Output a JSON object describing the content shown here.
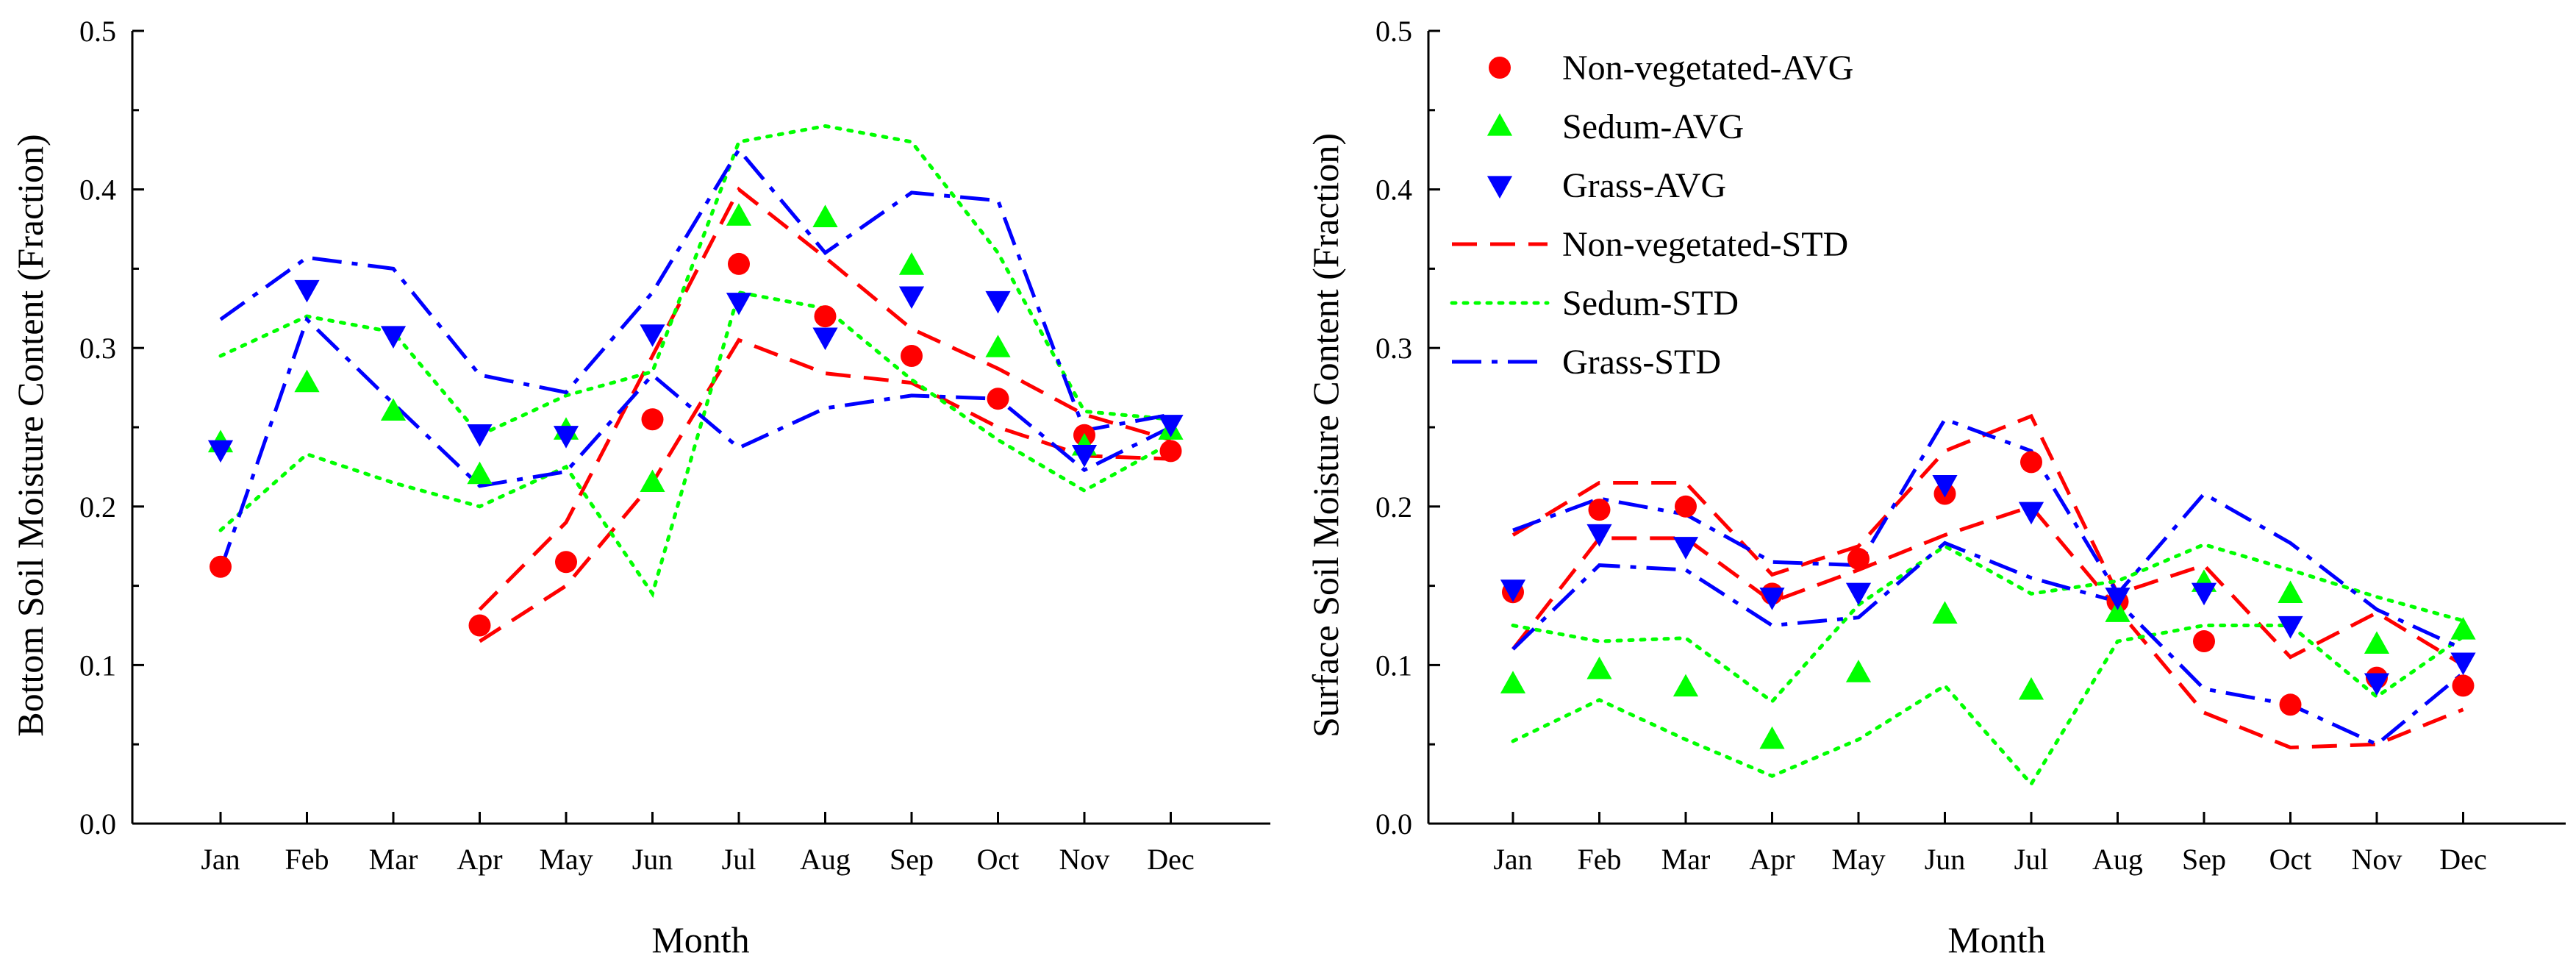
{
  "colors": {
    "nonveg": "#ff0000",
    "sedum": "#00ff00",
    "grass": "#0000ff",
    "axis": "#000000",
    "background": "#ffffff"
  },
  "legend": {
    "items": [
      {
        "label": "Non-vegetated-AVG",
        "series": "nonveg",
        "kind": "marker",
        "marker": "circle"
      },
      {
        "label": "Sedum-AVG",
        "series": "sedum",
        "kind": "marker",
        "marker": "triangle-up"
      },
      {
        "label": "Grass-AVG",
        "series": "grass",
        "kind": "marker",
        "marker": "triangle-down"
      },
      {
        "label": "Non-vegetated-STD",
        "series": "nonveg",
        "kind": "line",
        "style": "dash"
      },
      {
        "label": "Sedum-STD",
        "series": "sedum",
        "kind": "line",
        "style": "dot"
      },
      {
        "label": "Grass-STD",
        "series": "grass",
        "kind": "line",
        "style": "dashdot"
      }
    ]
  },
  "chart_data": [
    {
      "type": "scatter",
      "title": "",
      "xlabel": "Month",
      "ylabel": "Bottom Soil Moisture Content (Fraction)",
      "categories": [
        "Jan",
        "Feb",
        "Mar",
        "Apr",
        "May",
        "Jun",
        "Jul",
        "Aug",
        "Sep",
        "Oct",
        "Nov",
        "Dec"
      ],
      "ylim": [
        0.0,
        0.5
      ],
      "yticks": [
        "0.0",
        "0.1",
        "0.2",
        "0.3",
        "0.4",
        "0.5"
      ],
      "grid": false,
      "series": [
        {
          "name": "Non-vegetated-AVG",
          "key": "nonveg",
          "marker": "circle",
          "values": [
            0.162,
            null,
            null,
            0.125,
            0.165,
            0.255,
            0.353,
            0.32,
            0.295,
            0.268,
            0.245,
            0.235
          ]
        },
        {
          "name": "Sedum-AVG",
          "key": "sedum",
          "marker": "triangle-up",
          "values": [
            0.24,
            0.278,
            0.26,
            0.22,
            0.248,
            0.215,
            0.383,
            0.382,
            0.352,
            0.3,
            0.238,
            0.248
          ]
        },
        {
          "name": "Grass-AVG",
          "key": "grass",
          "marker": "triangle-down",
          "values": [
            0.236,
            0.337,
            0.308,
            0.246,
            0.245,
            0.309,
            0.329,
            0.307,
            0.333,
            0.33,
            0.233,
            0.252
          ]
        }
      ],
      "std_bands": [
        {
          "name": "Non-vegetated-STD",
          "key": "nonveg",
          "style": "dash",
          "upper": [
            null,
            null,
            null,
            0.135,
            0.19,
            0.295,
            0.4,
            0.357,
            0.312,
            0.287,
            0.258,
            0.242
          ],
          "lower": [
            null,
            null,
            null,
            0.115,
            0.15,
            0.215,
            0.305,
            0.284,
            0.278,
            0.25,
            0.232,
            0.23
          ]
        },
        {
          "name": "Sedum-STD",
          "key": "sedum",
          "style": "dot",
          "upper": [
            0.295,
            0.32,
            0.31,
            0.245,
            0.27,
            0.285,
            0.43,
            0.44,
            0.43,
            0.36,
            0.26,
            0.255
          ],
          "lower": [
            0.185,
            0.233,
            0.215,
            0.2,
            0.225,
            0.145,
            0.335,
            0.325,
            0.28,
            0.242,
            0.21,
            0.24
          ]
        },
        {
          "name": "Grass-STD",
          "key": "grass",
          "style": "dashdot",
          "upper": [
            0.318,
            0.357,
            0.35,
            0.283,
            0.272,
            0.335,
            0.425,
            0.36,
            0.398,
            0.393,
            0.248,
            0.258
          ]
        },
        {
          "name": "Grass-STD lower",
          "key": "grass",
          "style": "dashdot",
          "upper": [
            0.16,
            0.318,
            0.265,
            0.213,
            0.222,
            0.283,
            0.237,
            0.262,
            0.27,
            0.268,
            0.223,
            0.25
          ]
        }
      ]
    },
    {
      "type": "scatter",
      "title": "",
      "xlabel": "Month",
      "ylabel": "Surface Soil Moisture Content (Fraction)",
      "categories": [
        "Jan",
        "Feb",
        "Mar",
        "Apr",
        "May",
        "Jun",
        "Jul",
        "Aug",
        "Sep",
        "Oct",
        "Nov",
        "Dec"
      ],
      "ylim": [
        0.0,
        0.5
      ],
      "yticks": [
        "0.0",
        "0.1",
        "0.2",
        "0.3",
        "0.4",
        "0.5"
      ],
      "grid": false,
      "legend_position": "top-left",
      "series": [
        {
          "name": "Non-vegetated-AVG",
          "key": "nonveg",
          "marker": "circle",
          "values": [
            0.146,
            0.198,
            0.2,
            0.145,
            0.167,
            0.208,
            0.228,
            0.14,
            0.115,
            0.075,
            0.092,
            0.087
          ]
        },
        {
          "name": "Sedum-AVG",
          "key": "sedum",
          "marker": "triangle-up",
          "values": [
            0.088,
            0.097,
            0.086,
            0.053,
            0.095,
            0.132,
            0.084,
            0.133,
            0.152,
            0.145,
            0.113,
            0.122
          ]
        },
        {
          "name": "Grass-AVG",
          "key": "grass",
          "marker": "triangle-down",
          "values": [
            0.148,
            0.183,
            0.175,
            0.143,
            0.146,
            0.214,
            0.197,
            0.143,
            0.146,
            0.125,
            0.089,
            0.102
          ]
        }
      ],
      "std_bands": [
        {
          "name": "Non-vegetated-STD",
          "key": "nonveg",
          "style": "dash",
          "upper": [
            0.182,
            0.215,
            0.215,
            0.157,
            0.175,
            0.235,
            0.257,
            0.145,
            0.163,
            0.105,
            0.133,
            0.1
          ]
        },
        {
          "name": "Non-vegetated-STD lower",
          "key": "nonveg",
          "style": "dash",
          "upper": [
            0.11,
            0.18,
            0.18,
            0.14,
            0.16,
            0.182,
            0.2,
            0.135,
            0.07,
            0.048,
            0.05,
            0.072
          ]
        },
        {
          "name": "Sedum-STD",
          "key": "sedum",
          "style": "dot",
          "upper": [
            0.125,
            0.115,
            0.117,
            0.077,
            0.138,
            0.175,
            0.145,
            0.153,
            0.176,
            0.16,
            0.143,
            0.128
          ]
        },
        {
          "name": "Sedum-STD lower",
          "key": "sedum",
          "style": "dot",
          "upper": [
            0.052,
            0.078,
            0.053,
            0.03,
            0.053,
            0.087,
            0.025,
            0.115,
            0.125,
            0.125,
            0.08,
            0.118
          ]
        },
        {
          "name": "Grass-STD",
          "key": "grass",
          "style": "dashdot",
          "upper": [
            0.185,
            0.205,
            0.195,
            0.165,
            0.163,
            0.255,
            0.235,
            0.145,
            0.208,
            0.177,
            0.135,
            0.11
          ]
        },
        {
          "name": "Grass-STD lower",
          "key": "grass",
          "style": "dashdot",
          "upper": [
            0.11,
            0.163,
            0.16,
            0.125,
            0.13,
            0.177,
            0.155,
            0.14,
            0.085,
            0.075,
            0.05,
            0.095
          ]
        }
      ]
    }
  ]
}
